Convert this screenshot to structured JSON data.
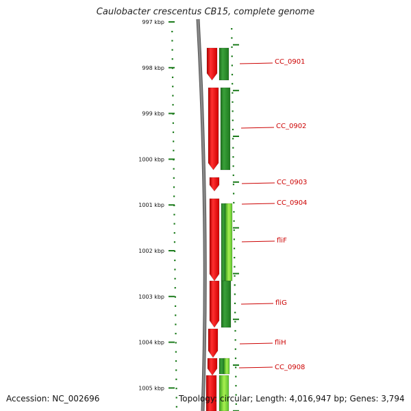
{
  "title": "Caulobacter crescentus CB15, complete genome",
  "footer": {
    "accession_label": "Accession:",
    "accession": "NC_002696",
    "topology_label": "Topology:",
    "topology": "circular",
    "length_label": "Length:",
    "length": "4,016,947 bp",
    "genes_label": "Genes:",
    "genes": "3,794"
  },
  "ticks": [
    "997 kbp",
    "998 kbp",
    "999 kbp",
    "1000 kbp",
    "1001 kbp",
    "1002 kbp",
    "1003 kbp",
    "1004 kbp",
    "1005 kbp"
  ],
  "colors": {
    "reverse_strand": "#e00000",
    "forward_strand": "#2a8a2a",
    "forward_strand_light": "#7fdc3a",
    "label_text": "#cc0000",
    "tick": "#1a7a1a",
    "backbone": "#888888"
  },
  "genes": [
    {
      "label": "CC_0901",
      "strand": "forward",
      "start_kbp": 997.55,
      "end_kbp": 998.25
    },
    {
      "label": "CC_0902",
      "strand": "forward",
      "start_kbp": 998.45,
      "end_kbp": 1000.2
    },
    {
      "label": "CC_0903",
      "strand": "forward",
      "start_kbp": 1000.4,
      "end_kbp": 1000.65
    },
    {
      "label": "CC_0904",
      "strand": "forward",
      "start_kbp": 1000.85,
      "end_kbp": 1001.05
    },
    {
      "label": "fliF",
      "strand": "forward",
      "start_kbp": 1001.0,
      "end_kbp": 1002.65
    },
    {
      "label": "fliG",
      "strand": "forward",
      "start_kbp": 1002.65,
      "end_kbp": 1003.65
    },
    {
      "label": "fliH",
      "strand": "forward",
      "start_kbp": 1003.7,
      "end_kbp": 1004.3
    },
    {
      "label": "CC_0908",
      "strand": "forward",
      "start_kbp": 1004.35,
      "end_kbp": 1005.6
    }
  ]
}
